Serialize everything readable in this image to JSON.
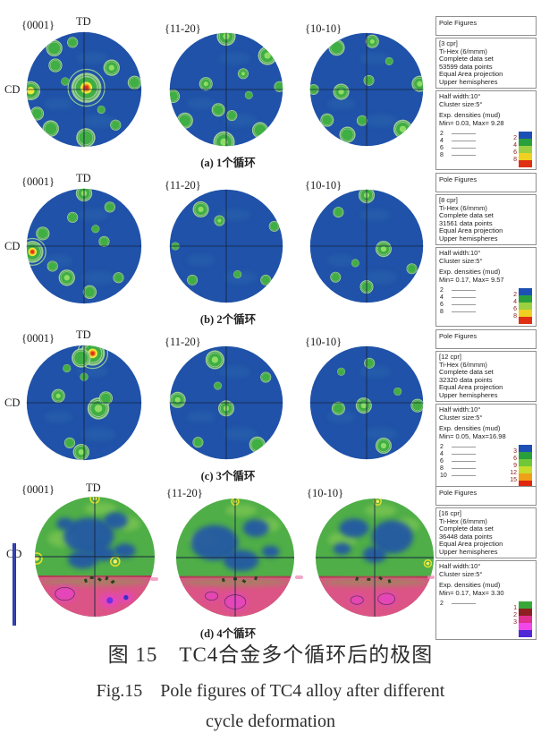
{
  "figure": {
    "caption_cn": "图 15　TC4合金多个循环后的极图",
    "caption_en1": "Fig.15　Pole figures of TC4 alloy after different",
    "caption_en2": "cycle deformation"
  },
  "palette": {
    "disc": "#1f52a8",
    "halo": "#a5d795",
    "green": "#3fae43",
    "bright": "#8edc66",
    "yellow": "#f2ea3c",
    "orange": "#f29a1c",
    "red": "#e0331a",
    "contour": "#2e8f35",
    "cross": "#17243f",
    "wisp": "#3d7fb5",
    "cGreen": "#4fae47",
    "cLight": "#8ecf57",
    "cBlue": "#2055a8",
    "pink": "#dc5486",
    "pinkEdge": "#b83058",
    "bandGreen": "#78a844",
    "magenta": "#e743c8",
    "speck": "#1c3c14",
    "cYellow": "#f6f060",
    "cYellowRing": "#e6e22a"
  },
  "rows": [
    {
      "caption": "(a) 1个循环",
      "labels": {
        "p1": "{0001}",
        "p2": "{11-20}",
        "p3": "{10-10}",
        "td": "TD",
        "cd": "CD"
      },
      "legend": {
        "title": "Pole Figures",
        "cpr": "[3 cpr]",
        "sym": "Ti-Hex (6/mmm)",
        "set": "Complete data set",
        "pts": "53599 data points",
        "proj": "Equal Area projection",
        "hemi": "Upper hemispheres",
        "half": "Half width:10°",
        "cluster": "Cluster size:5°",
        "dens": "Exp. densities (mud)",
        "minmax": "Min= 0.03, Max= 9.28",
        "contours": [
          "2",
          "4",
          "6",
          "8"
        ],
        "bar": {
          "labels": [
            "2",
            "4",
            "6",
            "8"
          ],
          "colors": [
            "#1d50b4",
            "#2aa03c",
            "#9cd042",
            "#f0d020",
            "#e03014"
          ]
        }
      },
      "pfs": [
        {
          "style": "normal",
          "spots": [
            [
              0.04,
              -0.03,
              11,
              "r"
            ],
            [
              -0.93,
              0.02,
              7,
              "y"
            ],
            [
              -0.52,
              -0.72,
              6,
              "g"
            ],
            [
              -0.2,
              -0.82,
              4,
              "g"
            ],
            [
              0.48,
              -0.38,
              6,
              "b"
            ],
            [
              0.88,
              -0.12,
              5,
              "g"
            ],
            [
              -0.5,
              -0.42,
              5,
              "g"
            ],
            [
              0.03,
              0.84,
              7,
              "g"
            ],
            [
              -0.58,
              0.68,
              6,
              "g"
            ],
            [
              -0.82,
              0.42,
              5,
              "g"
            ],
            [
              0.55,
              0.62,
              4,
              "g"
            ],
            [
              -0.33,
              -0.14,
              3,
              "g"
            ],
            [
              0.3,
              0.35,
              3,
              "g"
            ]
          ]
        },
        {
          "style": "normal",
          "spots": [
            [
              0.0,
              -0.94,
              7,
              "b"
            ],
            [
              0.73,
              -0.6,
              7,
              "b"
            ],
            [
              -0.94,
              0.12,
              5,
              "g"
            ],
            [
              -0.73,
              0.55,
              6,
              "g"
            ],
            [
              -0.04,
              0.93,
              8,
              "b"
            ],
            [
              0.6,
              0.72,
              6,
              "g"
            ],
            [
              -0.36,
              -0.1,
              5,
              "b"
            ],
            [
              -0.14,
              0.36,
              5,
              "g"
            ],
            [
              0.1,
              0.46,
              4,
              "g"
            ],
            [
              0.3,
              -0.28,
              4,
              "b"
            ],
            [
              0.94,
              -0.05,
              4,
              "g"
            ],
            [
              0.4,
              0.1,
              3,
              "g"
            ]
          ]
        },
        {
          "style": "normal",
          "spots": [
            [
              -0.53,
              -0.74,
              6,
              "g"
            ],
            [
              0.1,
              -0.85,
              5,
              "b"
            ],
            [
              0.94,
              -0.1,
              6,
              "b"
            ],
            [
              -0.94,
              0.0,
              4,
              "g"
            ],
            [
              -0.45,
              0.04,
              6,
              "b"
            ],
            [
              0.04,
              -0.16,
              4,
              "g"
            ],
            [
              0.64,
              0.7,
              7,
              "b"
            ],
            [
              -0.34,
              0.8,
              6,
              "g"
            ],
            [
              -0.7,
              0.54,
              5,
              "g"
            ],
            [
              -0.08,
              0.55,
              4,
              "g"
            ],
            [
              0.4,
              -0.5,
              3,
              "g"
            ]
          ]
        }
      ]
    },
    {
      "caption": "(b) 2个循环",
      "labels": {
        "p1": "{0001}",
        "p2": "{11-20}",
        "p3": "{10-10}",
        "td": "TD",
        "cd": "CD"
      },
      "legend": {
        "title": "Pole Figures",
        "cpr": "[8 cpr]",
        "sym": "Ti-Hex (6/mmm)",
        "set": "Complete data set",
        "pts": "31561 data points",
        "proj": "Equal Area projection",
        "hemi": "Upper hemispheres",
        "half": "Half width:10°",
        "cluster": "Cluster size:5°",
        "dens": "Exp. densities (mud)",
        "minmax": "Min= 0.17, Max= 9.57",
        "contours": [
          "2",
          "4",
          "6",
          "8"
        ],
        "bar": {
          "labels": [
            "2",
            "4",
            "6",
            "8"
          ],
          "colors": [
            "#1d50b4",
            "#2aa03c",
            "#9cd042",
            "#f0d020",
            "#e03014"
          ]
        }
      },
      "pfs": [
        {
          "style": "normal",
          "spots": [
            [
              -0.9,
              0.1,
              8,
              "r"
            ],
            [
              -0.72,
              -0.22,
              5,
              "g"
            ],
            [
              0.0,
              -0.92,
              6,
              "b"
            ],
            [
              0.45,
              -0.68,
              4,
              "g"
            ],
            [
              -0.2,
              -0.5,
              4,
              "g"
            ],
            [
              0.35,
              -0.08,
              4,
              "g"
            ],
            [
              -0.3,
              0.55,
              6,
              "b"
            ],
            [
              0.1,
              0.8,
              5,
              "g"
            ],
            [
              0.6,
              0.55,
              4,
              "g"
            ],
            [
              -0.55,
              0.35,
              4,
              "g"
            ],
            [
              0.2,
              -0.3,
              3,
              "g"
            ]
          ]
        },
        {
          "style": "normal",
          "spots": [
            [
              -0.45,
              -0.65,
              6,
              "b"
            ],
            [
              -0.12,
              -0.45,
              4,
              "b"
            ],
            [
              0.85,
              -0.35,
              4,
              "g"
            ],
            [
              0.7,
              0.6,
              4,
              "g"
            ],
            [
              -0.6,
              0.6,
              4,
              "g"
            ],
            [
              -0.9,
              0.0,
              3,
              "g"
            ],
            [
              0.2,
              0.5,
              3,
              "g"
            ]
          ]
        },
        {
          "style": "normal",
          "spots": [
            [
              0.0,
              -0.9,
              6,
              "b"
            ],
            [
              0.3,
              0.05,
              6,
              "b"
            ],
            [
              -0.5,
              -0.6,
              4,
              "g"
            ],
            [
              0.0,
              0.72,
              5,
              "g"
            ],
            [
              -0.55,
              0.55,
              4,
              "g"
            ],
            [
              0.8,
              0.4,
              4,
              "g"
            ],
            [
              -0.2,
              0.3,
              3,
              "g"
            ]
          ]
        }
      ]
    },
    {
      "caption": "(c) 3个循环",
      "labels": {
        "p1": "{0001}",
        "p2": "{11-20}",
        "p3": "{10-10}",
        "td": "TD",
        "cd": "CD"
      },
      "legend": {
        "title": "Pole Figures",
        "cpr": "[12 cpr]",
        "sym": "Ti-Hex (6/mmm)",
        "set": "Complete data set",
        "pts": "32320 data points",
        "proj": "Equal Area projection",
        "hemi": "Upper hemispheres",
        "half": "Half width:10°",
        "cluster": "Cluster size:5°",
        "dens": "Exp. densities (mud)",
        "minmax": "Min= 0.05, Max=16.98",
        "contours": [
          "2",
          "4",
          "6",
          "8",
          "10"
        ],
        "bar": {
          "labels": [
            "3",
            "6",
            "9",
            "12",
            "15"
          ],
          "colors": [
            "#1d50b4",
            "#2aa03c",
            "#70c838",
            "#c8dc2c",
            "#f0a018",
            "#e02810"
          ]
        }
      },
      "pfs": [
        {
          "style": "normal",
          "spots": [
            [
              0.15,
              -0.86,
              9,
              "r"
            ],
            [
              -0.05,
              -0.78,
              7,
              "g"
            ],
            [
              0.25,
              0.1,
              8,
              "b"
            ],
            [
              0.38,
              -0.08,
              5,
              "g"
            ],
            [
              -0.45,
              -0.12,
              5,
              "b"
            ],
            [
              -0.05,
              0.86,
              6,
              "b"
            ],
            [
              -0.25,
              0.7,
              4,
              "g"
            ],
            [
              -0.3,
              -0.6,
              3,
              "g"
            ],
            [
              0.0,
              -0.45,
              3,
              "g"
            ]
          ]
        },
        {
          "style": "normal",
          "spots": [
            [
              -0.2,
              -0.76,
              7,
              "b"
            ],
            [
              -0.86,
              -0.05,
              6,
              "b"
            ],
            [
              0.0,
              0.1,
              6,
              "b"
            ],
            [
              0.55,
              0.74,
              6,
              "g"
            ],
            [
              0.7,
              -0.45,
              4,
              "g"
            ],
            [
              -0.5,
              0.7,
              4,
              "g"
            ],
            [
              -0.15,
              -0.3,
              3,
              "g"
            ]
          ]
        },
        {
          "style": "normal",
          "spots": [
            [
              -0.05,
              0.05,
              6,
              "b"
            ],
            [
              -0.5,
              0.1,
              5,
              "g"
            ],
            [
              0.9,
              0.05,
              5,
              "g"
            ],
            [
              0.3,
              0.76,
              6,
              "b"
            ],
            [
              0.05,
              -0.7,
              4,
              "g"
            ],
            [
              -0.45,
              -0.55,
              3,
              "g"
            ],
            [
              0.55,
              -0.2,
              3,
              "g"
            ]
          ]
        }
      ]
    },
    {
      "caption": "(d) 4个循环",
      "labels": {
        "p1": "{0001}",
        "p2": "{11-20}",
        "p3": "{10-10}",
        "td": "TD",
        "cd": "CD"
      },
      "legend": {
        "title": "Pole Figures",
        "cpr": "[16 cpr]",
        "sym": "Ti-Hex (6/mmm)",
        "set": "Complete data set",
        "pts": "36448 data points",
        "proj": "Equal Area projection",
        "hemi": "Upper hemispheres",
        "half": "Half width:10°",
        "cluster": "Cluster size:5°",
        "dens": "Exp. densities (mud)",
        "minmax": "Min= 0.17, Max= 3.30",
        "contours": [
          "2"
        ],
        "bar": {
          "labels": [
            "1",
            "2",
            "3"
          ],
          "colors": [
            "#38a838",
            "#8c2020",
            "#e03090",
            "#f048e8",
            "#5028d8"
          ]
        }
      },
      "pfs": [
        {
          "style": "corrupt",
          "blue": [
            [
              -0.1,
              -0.35,
              0.42,
              0.3
            ],
            [
              0.35,
              -0.6,
              0.2,
              0.14
            ],
            [
              0.5,
              -0.1,
              0.18,
              0.12
            ],
            [
              -0.5,
              -0.55,
              0.14,
              0.1
            ],
            [
              -0.2,
              0.05,
              0.25,
              0.15
            ],
            [
              0.15,
              -0.05,
              0.2,
              0.12
            ]
          ],
          "yellow": [
            [
              0.0,
              -0.97,
              5
            ],
            [
              -0.97,
              0.03,
              6
            ],
            [
              0.34,
              0.08,
              5
            ]
          ],
          "magenta": [
            [
              -0.5,
              0.62,
              9,
              "none"
            ],
            [
              0.25,
              0.73,
              8,
              "#7030e0"
            ],
            [
              0.52,
              0.68,
              6,
              "#3830c8"
            ]
          ],
          "specks": [
            [
              -0.05,
              0.35
            ],
            [
              0.08,
              0.38
            ],
            [
              -0.15,
              0.4
            ],
            [
              0.2,
              0.36
            ],
            [
              0.3,
              0.42
            ]
          ]
        },
        {
          "style": "corrupt",
          "blue": [
            [
              -0.35,
              -0.25,
              0.4,
              0.3
            ],
            [
              0.35,
              -0.5,
              0.22,
              0.15
            ],
            [
              0.1,
              0.05,
              0.3,
              0.18
            ],
            [
              0.6,
              -0.1,
              0.15,
              0.1
            ]
          ],
          "yellow": [
            [
              0.0,
              -0.95,
              4
            ]
          ],
          "magenta": [
            [
              0.0,
              0.75,
              10,
              "none"
            ],
            [
              -0.4,
              0.65,
              6,
              "none"
            ]
          ],
          "specks": [
            [
              0.0,
              0.36
            ],
            [
              0.15,
              0.4
            ],
            [
              -0.2,
              0.38
            ],
            [
              0.35,
              0.35
            ]
          ]
        },
        {
          "style": "corrupt",
          "blue": [
            [
              0.3,
              -0.35,
              0.35,
              0.28
            ],
            [
              -0.35,
              -0.5,
              0.25,
              0.16
            ],
            [
              0.0,
              -0.05,
              0.2,
              0.14
            ],
            [
              -0.55,
              -0.15,
              0.15,
              0.1
            ]
          ],
          "yellow": [
            [
              0.05,
              -0.95,
              4
            ],
            [
              0.9,
              0.1,
              4
            ]
          ],
          "magenta": [
            [
              0.2,
              0.7,
              8,
              "none"
            ],
            [
              -0.3,
              0.72,
              6,
              "none"
            ]
          ],
          "specks": [
            [
              -0.1,
              0.37
            ],
            [
              0.1,
              0.35
            ],
            [
              0.25,
              0.4
            ],
            [
              -0.3,
              0.36
            ]
          ]
        }
      ]
    }
  ]
}
